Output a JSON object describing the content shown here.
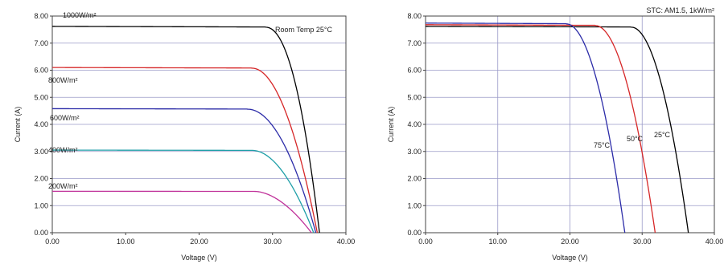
{
  "chart_data": [
    {
      "type": "line",
      "title": "",
      "xlabel": "Voltage (V)",
      "ylabel": "Current (A)",
      "xlim": [
        0,
        40
      ],
      "ylim": [
        0,
        8
      ],
      "x_ticks": [
        "0.00",
        "10.00",
        "20.00",
        "30.00",
        "40.00"
      ],
      "y_ticks": [
        "0.00",
        "1.00",
        "2.00",
        "3.00",
        "4.00",
        "5.00",
        "6.00",
        "7.00",
        "8.00"
      ],
      "grid": "horizontal",
      "annotation": "Room Temp 25°C",
      "series": [
        {
          "name": "1000W/m²",
          "color": "#000000",
          "isc": 7.62,
          "voc": 36.4,
          "knee": 29.0,
          "curvature": 2.2
        },
        {
          "name": "800W/m²",
          "color": "#d62728",
          "isc": 6.1,
          "voc": 36.1,
          "knee": 27.2,
          "curvature": 2.0
        },
        {
          "name": "600W/m²",
          "color": "#2c2ca8",
          "isc": 4.58,
          "voc": 35.9,
          "knee": 26.6,
          "curvature": 2.0
        },
        {
          "name": "400W/m²",
          "color": "#1f9fa8",
          "isc": 3.05,
          "voc": 35.6,
          "knee": 27.3,
          "curvature": 1.9
        },
        {
          "name": "200W/m²",
          "color": "#c0329a",
          "isc": 1.53,
          "voc": 35.3,
          "knee": 27.6,
          "curvature": 1.8
        }
      ]
    },
    {
      "type": "line",
      "title": "",
      "xlabel": "Voltage (V)",
      "ylabel": "Current (A)",
      "xlim": [
        0,
        40
      ],
      "ylim": [
        0,
        8
      ],
      "x_ticks": [
        "0.00",
        "10.00",
        "20.00",
        "30.00",
        "40.00"
      ],
      "y_ticks": [
        "0.00",
        "1.00",
        "2.00",
        "3.00",
        "4.00",
        "5.00",
        "6.00",
        "7.00",
        "8.00"
      ],
      "grid": "both",
      "annotation": "STC: AM1.5, 1kW/m²",
      "series": [
        {
          "name": "25°C",
          "color": "#000000",
          "isc": 7.62,
          "voc": 36.4,
          "knee": 28.5,
          "curvature": 2.0
        },
        {
          "name": "50°C",
          "color": "#d62728",
          "isc": 7.68,
          "voc": 31.8,
          "knee": 23.5,
          "curvature": 2.0
        },
        {
          "name": "75°C",
          "color": "#2c2ca8",
          "isc": 7.74,
          "voc": 27.6,
          "knee": 19.5,
          "curvature": 2.0
        }
      ]
    }
  ]
}
